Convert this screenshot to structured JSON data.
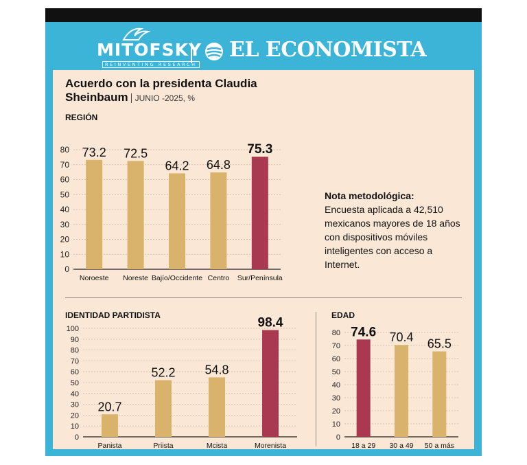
{
  "masthead": {
    "brand_left": "MITOFSKY",
    "brand_left_tagline": "REINVENTING RESEARCH",
    "brand_right": "EL ECONOMISTA"
  },
  "header": {
    "title": "Acuerdo con la presidenta Claudia",
    "title_line2": "Sheinbaum",
    "subtitle": "JUNIO -2025, %"
  },
  "note": {
    "heading": "Nota metodológica:",
    "body": "Encuesta aplicada a 42,510 mexicanos mayores de 18 años con dispositivos móviles inteligentes con acceso a Internet."
  },
  "colors": {
    "gold": "#d9b36b",
    "highlight": "#a93851",
    "frame": "#3bb4d8",
    "panel": "#fbe7d6"
  },
  "chart_data": [
    {
      "type": "bar",
      "section": "REGIÓN",
      "categories": [
        "Noroeste",
        "Noreste",
        "Bajío/Occidente",
        "Centro",
        "Sur/Península"
      ],
      "values": [
        73.2,
        72.5,
        64.2,
        64.8,
        75.3
      ],
      "value_labels": [
        "73.2",
        "72.5",
        "64.2",
        "64.8",
        "75.3"
      ],
      "highlight_index": 4,
      "ylim": [
        0,
        80
      ],
      "yticks": [
        0,
        10,
        20,
        30,
        40,
        50,
        60,
        70,
        80
      ],
      "grid": true
    },
    {
      "type": "bar",
      "section": "IDENTIDAD PARTIDISTA",
      "categories": [
        "Panista",
        "Priista",
        "Mcista",
        "Morenista"
      ],
      "values": [
        20.7,
        52.2,
        54.8,
        98.4
      ],
      "value_labels": [
        "20.7",
        "52.2",
        "54.8",
        "98.4"
      ],
      "highlight_index": 3,
      "ylim": [
        0,
        100
      ],
      "yticks": [
        0,
        10,
        20,
        30,
        40,
        50,
        60,
        70,
        80,
        90,
        100
      ],
      "grid": true
    },
    {
      "type": "bar",
      "section": "EDAD",
      "categories": [
        "18 a 29",
        "30 a 49",
        "50 a más"
      ],
      "values": [
        74.6,
        70.4,
        65.5
      ],
      "value_labels": [
        "74.6",
        "70.4",
        "65.5"
      ],
      "highlight_index": 0,
      "ylim": [
        0,
        80
      ],
      "yticks": [
        0,
        10,
        20,
        30,
        40,
        50,
        60,
        70,
        80
      ],
      "grid": true
    }
  ]
}
